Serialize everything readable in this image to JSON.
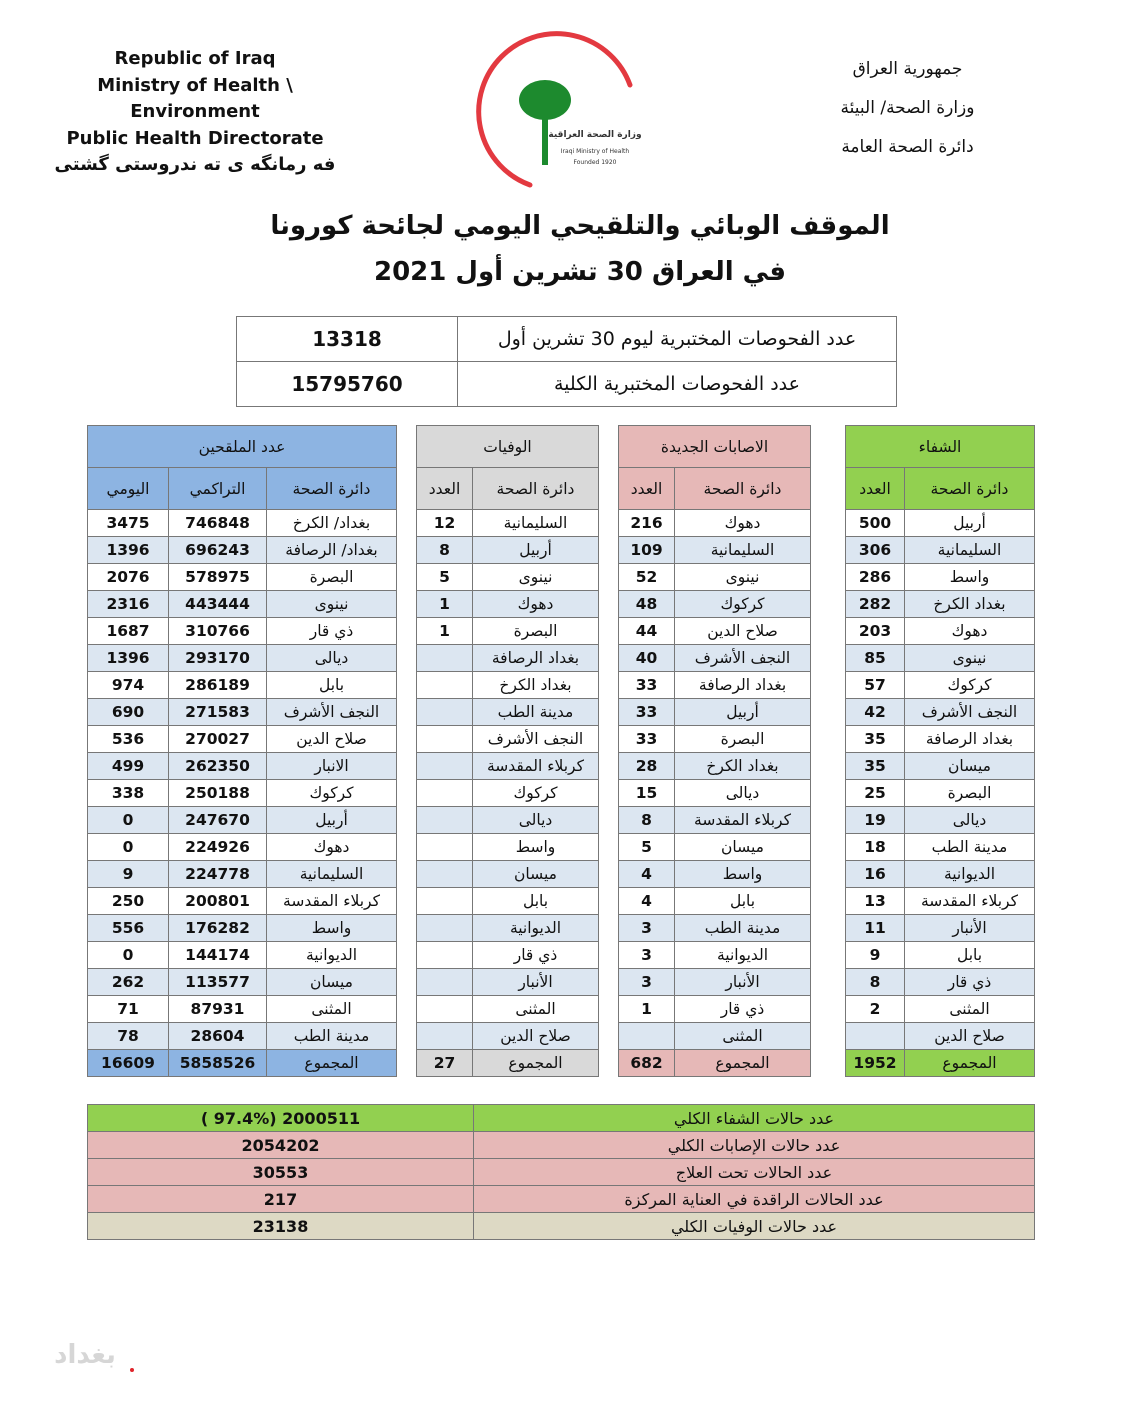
{
  "header": {
    "english_lines": [
      "Republic of Iraq",
      "Ministry of Health \\ Environment",
      "Public Health Directorate",
      "فه رمانگه ى ته ندروستى گشتى"
    ],
    "arabic_lines": [
      "جمهورية العراق",
      "وزارة الصحة/ البيئة",
      "دائرة الصحة العامة"
    ],
    "logo_text": [
      "وزارة الصحة العراقية",
      "Iraqi Ministry of Health",
      "Founded 1920"
    ]
  },
  "title": {
    "line1": "الموقف الوبائي والتلقيحي اليومي لجائحة كورونا",
    "line2": "في العراق  30  تشرين أول 2021"
  },
  "tests": [
    {
      "label": "عدد الفحوصات المختبرية  ليوم 30 تشرين أول",
      "value": "13318"
    },
    {
      "label": "عدد الفحوصات المختبرية الكلية",
      "value": "15795760"
    }
  ],
  "colors": {
    "vaccinated": "#8db4e2",
    "deaths": "#d9d9d9",
    "infections": "#e6b8b7",
    "recovery": "#92d050",
    "deaths_total": "#ddd9c4",
    "alt_row": "#dce6f1"
  },
  "recovery": {
    "title": "الشفاء",
    "col_name": "دائرة الصحة",
    "col_count": "العدد",
    "rows": [
      [
        "أربيل",
        "500"
      ],
      [
        "السليمانية",
        "306"
      ],
      [
        "واسط",
        "286"
      ],
      [
        "بغداد الكرخ",
        "282"
      ],
      [
        "دهوك",
        "203"
      ],
      [
        "نينوى",
        "85"
      ],
      [
        "كركوك",
        "57"
      ],
      [
        "النجف الأشرف",
        "42"
      ],
      [
        "بغداد الرصافة",
        "35"
      ],
      [
        "ميسان",
        "35"
      ],
      [
        "البصرة",
        "25"
      ],
      [
        "ديالى",
        "19"
      ],
      [
        "مدينة الطب",
        "18"
      ],
      [
        "الديوانية",
        "16"
      ],
      [
        "كربلاء المقدسة",
        "13"
      ],
      [
        "الأنبار",
        "11"
      ],
      [
        "بابل",
        "9"
      ],
      [
        "ذي قار",
        "8"
      ],
      [
        "المثنى",
        "2"
      ],
      [
        "صلاح الدين",
        ""
      ]
    ],
    "total_label": "المجموع",
    "total": "1952"
  },
  "infections": {
    "title": "الاصابات الجديدة",
    "col_name": "دائرة الصحة",
    "col_count": "العدد",
    "rows": [
      [
        "دهوك",
        "216"
      ],
      [
        "السليمانية",
        "109"
      ],
      [
        "نينوى",
        "52"
      ],
      [
        "كركوك",
        "48"
      ],
      [
        "صلاح الدين",
        "44"
      ],
      [
        "النجف الأشرف",
        "40"
      ],
      [
        "بغداد الرصافة",
        "33"
      ],
      [
        "أربيل",
        "33"
      ],
      [
        "البصرة",
        "33"
      ],
      [
        "بغداد الكرخ",
        "28"
      ],
      [
        "ديالى",
        "15"
      ],
      [
        "كربلاء المقدسة",
        "8"
      ],
      [
        "ميسان",
        "5"
      ],
      [
        "واسط",
        "4"
      ],
      [
        "بابل",
        "4"
      ],
      [
        "مدينة الطب",
        "3"
      ],
      [
        "الديوانية",
        "3"
      ],
      [
        "الأنبار",
        "3"
      ],
      [
        "ذي قار",
        "1"
      ],
      [
        "المثنى",
        ""
      ]
    ],
    "total_label": "المجموع",
    "total": "682"
  },
  "deaths": {
    "title": "الوفيات",
    "col_name": "دائرة الصحة",
    "col_count": "العدد",
    "rows": [
      [
        "السليمانية",
        "12"
      ],
      [
        "أربيل",
        "8"
      ],
      [
        "نينوى",
        "5"
      ],
      [
        "دهوك",
        "1"
      ],
      [
        "البصرة",
        "1"
      ],
      [
        "بغداد الرصافة",
        ""
      ],
      [
        "بغداد الكرخ",
        ""
      ],
      [
        "مدينة الطب",
        ""
      ],
      [
        "النجف الأشرف",
        ""
      ],
      [
        "كربلاء المقدسة",
        ""
      ],
      [
        "كركوك",
        ""
      ],
      [
        "ديالى",
        ""
      ],
      [
        "واسط",
        ""
      ],
      [
        "ميسان",
        ""
      ],
      [
        "بابل",
        ""
      ],
      [
        "الديوانية",
        ""
      ],
      [
        "ذي قار",
        ""
      ],
      [
        "الأنبار",
        ""
      ],
      [
        "المثنى",
        ""
      ],
      [
        "صلاح الدين",
        ""
      ]
    ],
    "total_label": "المجموع",
    "total": "27"
  },
  "vaccinated": {
    "title": "عدد الملقحين",
    "col_name": "دائرة الصحة",
    "col_cumulative": "التراكمي",
    "col_daily": "اليومي",
    "rows": [
      [
        "بغداد/ الكرخ",
        "746848",
        "3475"
      ],
      [
        "بغداد/ الرصافة",
        "696243",
        "1396"
      ],
      [
        "البصرة",
        "578975",
        "2076"
      ],
      [
        "نينوى",
        "443444",
        "2316"
      ],
      [
        "ذي قار",
        "310766",
        "1687"
      ],
      [
        "ديالى",
        "293170",
        "1396"
      ],
      [
        "بابل",
        "286189",
        "974"
      ],
      [
        "النجف الأشرف",
        "271583",
        "690"
      ],
      [
        "صلاح الدين",
        "270027",
        "536"
      ],
      [
        "الانبار",
        "262350",
        "499"
      ],
      [
        "كركوك",
        "250188",
        "338"
      ],
      [
        "أربيل",
        "247670",
        "0"
      ],
      [
        "دهوك",
        "224926",
        "0"
      ],
      [
        "السليمانية",
        "224778",
        "9"
      ],
      [
        "كربلاء المقدسة",
        "200801",
        "250"
      ],
      [
        "واسط",
        "176282",
        "556"
      ],
      [
        "الديوانية",
        "144174",
        "0"
      ],
      [
        "ميسان",
        "113577",
        "262"
      ],
      [
        "المثنى",
        "87931",
        "71"
      ],
      [
        "مدينة الطب",
        "28604",
        "78"
      ]
    ],
    "total_label": "المجموع",
    "total_cumulative": "5858526",
    "total_daily": "16609"
  },
  "summary": [
    {
      "label": "عدد حالات الشفاء الكلي",
      "value": "( 97.4%)  2000511",
      "color": "#92d050"
    },
    {
      "label": "عدد حالات الإصابات الكلي",
      "value": "2054202",
      "color": "#e6b8b7"
    },
    {
      "label": "عدد الحالات تحت العلاج",
      "value": "30553",
      "color": "#e6b8b7"
    },
    {
      "label": "عدد الحالات الراقدة في العناية المركزة",
      "value": "217",
      "color": "#e6b8b7"
    },
    {
      "label": "عدد حالات الوفيات الكلي",
      "value": "23138",
      "color": "#ddd9c4"
    }
  ],
  "watermark": "بغداد"
}
